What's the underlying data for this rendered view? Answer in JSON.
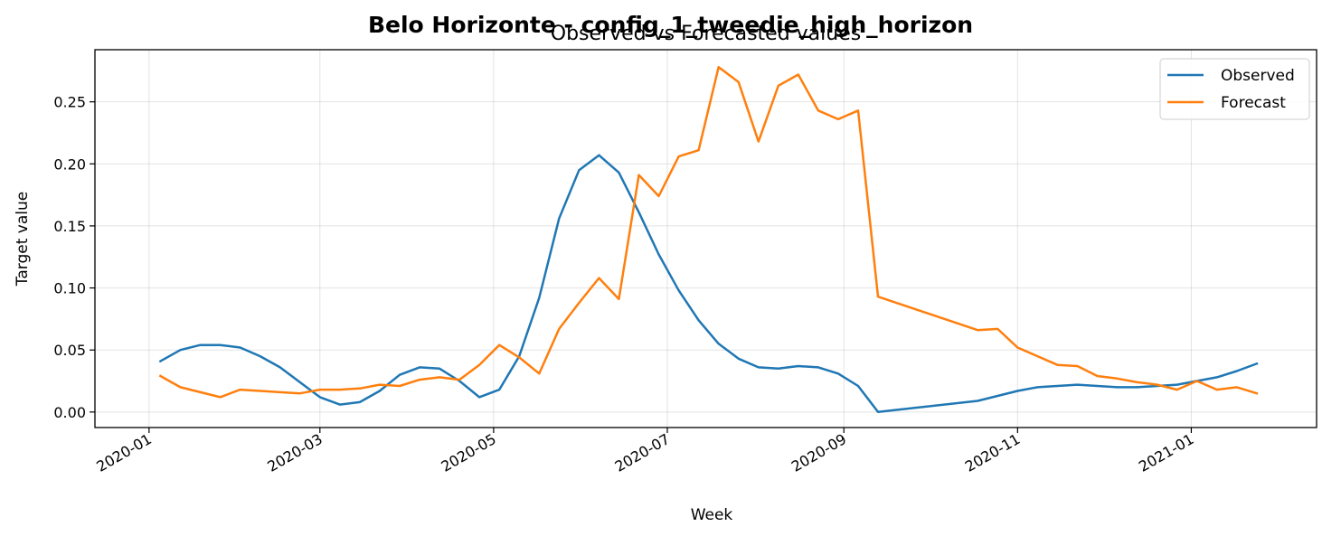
{
  "chart_data": {
    "type": "line",
    "suptitle": "Belo Horizonte - config_1_tweedie_high_horizon",
    "title": "Observed vs Forecasted values",
    "xlabel": "Week",
    "ylabel": "Target value",
    "x_range": [
      "2019-12-13",
      "2021-02-14"
    ],
    "ylim": [
      -0.0125,
      0.292
    ],
    "grid": true,
    "legend_position": "top-right",
    "x_ticks": [
      "2020-01",
      "2020-03",
      "2020-05",
      "2020-07",
      "2020-09",
      "2020-11",
      "2021-01"
    ],
    "y_ticks": [
      "0.00",
      "0.05",
      "0.10",
      "0.15",
      "0.20",
      "0.25"
    ],
    "series": [
      {
        "name": "Observed",
        "color": "#1f77b4",
        "points": [
          [
            "2020-01-05",
            0.041
          ],
          [
            "2020-01-12",
            0.05
          ],
          [
            "2020-01-19",
            0.054
          ],
          [
            "2020-01-26",
            0.054
          ],
          [
            "2020-02-02",
            0.052
          ],
          [
            "2020-02-09",
            0.045
          ],
          [
            "2020-02-16",
            0.036
          ],
          [
            "2020-02-23",
            0.024
          ],
          [
            "2020-03-01",
            0.012
          ],
          [
            "2020-03-08",
            0.006
          ],
          [
            "2020-03-15",
            0.008
          ],
          [
            "2020-03-22",
            0.017
          ],
          [
            "2020-03-29",
            0.03
          ],
          [
            "2020-04-05",
            0.036
          ],
          [
            "2020-04-12",
            0.035
          ],
          [
            "2020-04-19",
            0.025
          ],
          [
            "2020-04-26",
            0.012
          ],
          [
            "2020-05-03",
            0.018
          ],
          [
            "2020-05-10",
            0.045
          ],
          [
            "2020-05-17",
            0.092
          ],
          [
            "2020-05-24",
            0.156
          ],
          [
            "2020-05-31",
            0.195
          ],
          [
            "2020-06-07",
            0.207
          ],
          [
            "2020-06-14",
            0.193
          ],
          [
            "2020-06-21",
            0.161
          ],
          [
            "2020-06-28",
            0.127
          ],
          [
            "2020-07-05",
            0.098
          ],
          [
            "2020-07-12",
            0.074
          ],
          [
            "2020-07-19",
            0.055
          ],
          [
            "2020-07-26",
            0.043
          ],
          [
            "2020-08-02",
            0.036
          ],
          [
            "2020-08-09",
            0.035
          ],
          [
            "2020-08-16",
            0.037
          ],
          [
            "2020-08-23",
            0.036
          ],
          [
            "2020-08-30",
            0.031
          ],
          [
            "2020-09-06",
            0.021
          ],
          [
            "2020-09-13",
            0.0
          ],
          [
            "2020-10-18",
            0.009
          ],
          [
            "2020-10-25",
            0.013
          ],
          [
            "2020-11-01",
            0.017
          ],
          [
            "2020-11-08",
            0.02
          ],
          [
            "2020-11-15",
            0.021
          ],
          [
            "2020-11-22",
            0.022
          ],
          [
            "2020-11-29",
            0.021
          ],
          [
            "2020-12-06",
            0.02
          ],
          [
            "2020-12-13",
            0.02
          ],
          [
            "2020-12-20",
            0.021
          ],
          [
            "2020-12-27",
            0.022
          ],
          [
            "2021-01-03",
            0.025
          ],
          [
            "2021-01-10",
            0.028
          ],
          [
            "2021-01-17",
            0.033
          ],
          [
            "2021-01-24",
            0.039
          ]
        ]
      },
      {
        "name": "Forecast",
        "color": "#ff7f0e",
        "points": [
          [
            "2020-01-05",
            0.029
          ],
          [
            "2020-01-12",
            0.02
          ],
          [
            "2020-01-19",
            0.016
          ],
          [
            "2020-01-26",
            0.012
          ],
          [
            "2020-02-02",
            0.018
          ],
          [
            "2020-02-09",
            0.017
          ],
          [
            "2020-02-16",
            0.016
          ],
          [
            "2020-02-23",
            0.015
          ],
          [
            "2020-03-01",
            0.018
          ],
          [
            "2020-03-08",
            0.018
          ],
          [
            "2020-03-15",
            0.019
          ],
          [
            "2020-03-22",
            0.022
          ],
          [
            "2020-03-29",
            0.021
          ],
          [
            "2020-04-05",
            0.026
          ],
          [
            "2020-04-12",
            0.028
          ],
          [
            "2020-04-19",
            0.026
          ],
          [
            "2020-04-26",
            0.038
          ],
          [
            "2020-05-03",
            0.054
          ],
          [
            "2020-05-10",
            0.044
          ],
          [
            "2020-05-17",
            0.031
          ],
          [
            "2020-05-24",
            0.067
          ],
          [
            "2020-05-31",
            0.088
          ],
          [
            "2020-06-07",
            0.108
          ],
          [
            "2020-06-14",
            0.091
          ],
          [
            "2020-06-21",
            0.191
          ],
          [
            "2020-06-28",
            0.174
          ],
          [
            "2020-07-05",
            0.206
          ],
          [
            "2020-07-12",
            0.211
          ],
          [
            "2020-07-19",
            0.278
          ],
          [
            "2020-07-26",
            0.266
          ],
          [
            "2020-08-02",
            0.218
          ],
          [
            "2020-08-09",
            0.263
          ],
          [
            "2020-08-16",
            0.272
          ],
          [
            "2020-08-23",
            0.243
          ],
          [
            "2020-08-30",
            0.236
          ],
          [
            "2020-09-06",
            0.243
          ],
          [
            "2020-09-13",
            0.093
          ],
          [
            "2020-10-18",
            0.066
          ],
          [
            "2020-10-25",
            0.067
          ],
          [
            "2020-11-01",
            0.052
          ],
          [
            "2020-11-08",
            0.045
          ],
          [
            "2020-11-15",
            0.038
          ],
          [
            "2020-11-22",
            0.037
          ],
          [
            "2020-11-29",
            0.029
          ],
          [
            "2020-12-06",
            0.027
          ],
          [
            "2020-12-13",
            0.024
          ],
          [
            "2020-12-20",
            0.022
          ],
          [
            "2020-12-27",
            0.018
          ],
          [
            "2021-01-03",
            0.025
          ],
          [
            "2021-01-10",
            0.018
          ],
          [
            "2021-01-17",
            0.02
          ],
          [
            "2021-01-24",
            0.015
          ]
        ]
      }
    ]
  }
}
